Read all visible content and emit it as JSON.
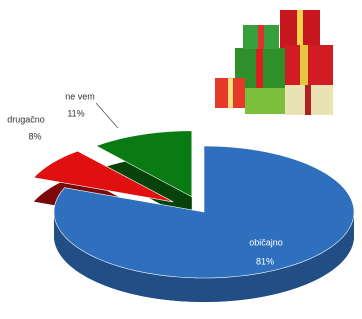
{
  "chart_data": {
    "type": "pie3d",
    "categories": [
      "običajno",
      "drugačno",
      "ne vem"
    ],
    "values": [
      81,
      8,
      11
    ],
    "value_labels": [
      "81%",
      "8%",
      "11%"
    ],
    "colors": [
      "#2e6fbe",
      "#e01010",
      "#0a7a12"
    ]
  }
}
